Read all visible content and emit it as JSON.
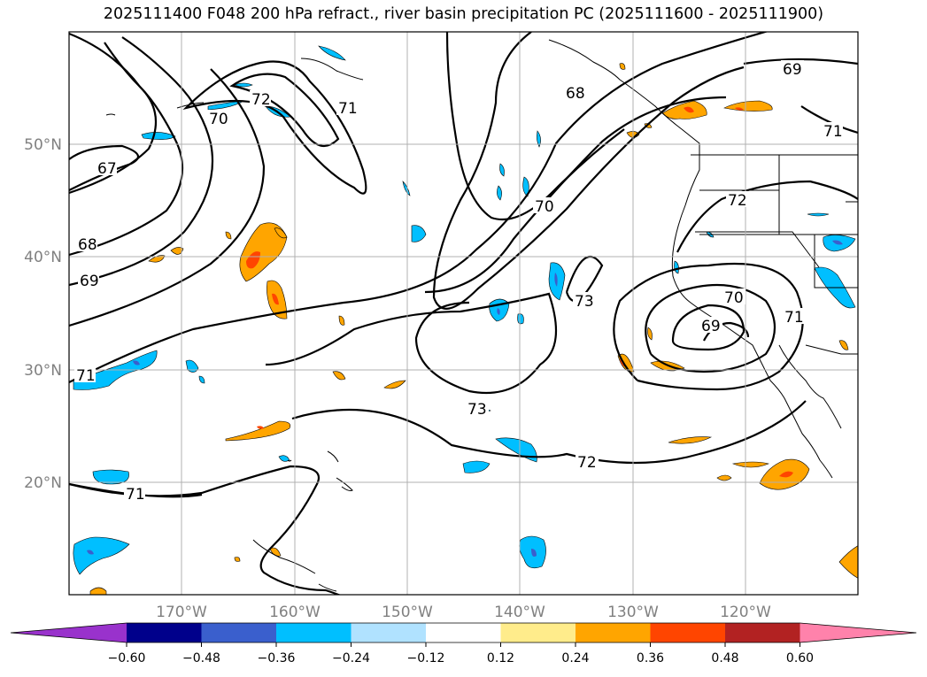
{
  "title": "2025111400 F048 200 hPa refract., river basin precipitation PC (2025111600 - 2025111900)",
  "latitude_labels": [
    "50°N",
    "40°N",
    "30°N",
    "20°N"
  ],
  "longitude_labels": [
    "170°W",
    "160°W",
    "150°W",
    "140°W",
    "130°W",
    "120°W"
  ],
  "contour_labels": [
    "67",
    "68",
    "69",
    "70",
    "71",
    "72",
    "73"
  ],
  "colorbar": {
    "ticks": [
      "−0.60",
      "−0.48",
      "−0.36",
      "−0.24",
      "−0.12",
      "0.12",
      "0.24",
      "0.36",
      "0.48",
      "0.60"
    ],
    "colors": [
      "#9932cc",
      "#00008b",
      "#3a5fcd",
      "#00bfff",
      "#b0e2ff",
      "#ffffff",
      "#ffec8b",
      "#ffa500",
      "#ff4500",
      "#b22222",
      "#ff82ab"
    ]
  },
  "colors": {
    "negative_strong": "#3a5fcd",
    "negative": "#00bfff",
    "positive": "#ffa500",
    "positive_strong": "#ff4500",
    "gridline": "#b0b0b0",
    "contour": "#000000"
  }
}
